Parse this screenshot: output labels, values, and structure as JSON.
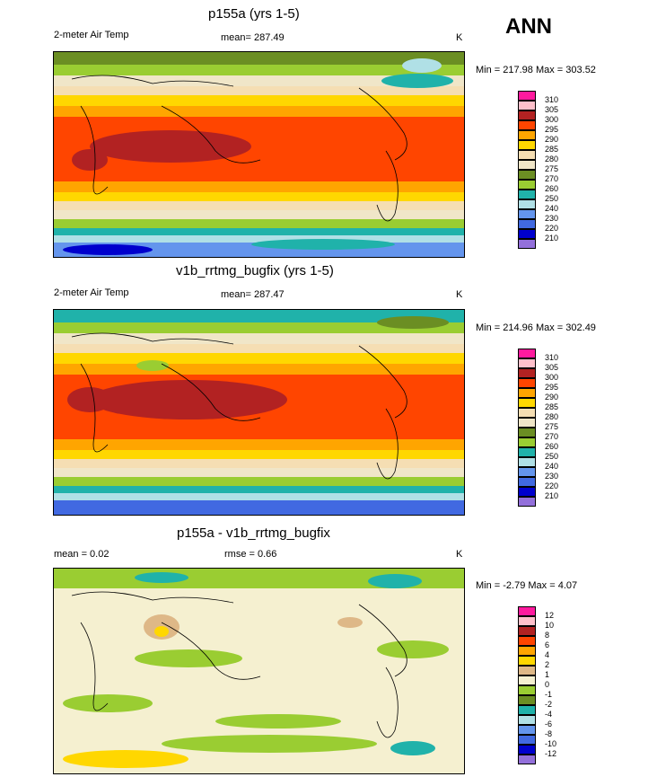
{
  "season": "ANN",
  "chart_data": [
    {
      "type": "heatmap",
      "title": "p155a (yrs 1-5)",
      "left_label": "2-meter Air Temp",
      "center_label": "mean= 287.49",
      "units": "K",
      "minmax": "Min = 217.98 Max = 303.52",
      "levels": [
        "310",
        "305",
        "300",
        "295",
        "290",
        "285",
        "280",
        "275",
        "270",
        "260",
        "250",
        "240",
        "230",
        "220",
        "210"
      ],
      "colors": [
        "#ff1a9e",
        "#ffc0cb",
        "#b22222",
        "#ff4500",
        "#ffa500",
        "#ffd700",
        "#f5deb3",
        "#f0e6c8",
        "#6b8e23",
        "#9acd32",
        "#20b2aa",
        "#b0e0e6",
        "#6495ed",
        "#4169e1",
        "#0000cd",
        "#9370db"
      ]
    },
    {
      "type": "heatmap",
      "title": "v1b_rrtmg_bugfix (yrs 1-5)",
      "left_label": "2-meter Air Temp",
      "center_label": "mean= 287.47",
      "units": "K",
      "minmax": "Min = 214.96 Max = 302.49",
      "levels": [
        "310",
        "305",
        "300",
        "295",
        "290",
        "285",
        "280",
        "275",
        "270",
        "260",
        "250",
        "240",
        "230",
        "220",
        "210"
      ],
      "colors": [
        "#ff1a9e",
        "#ffc0cb",
        "#b22222",
        "#ff4500",
        "#ffa500",
        "#ffd700",
        "#f5deb3",
        "#f0e6c8",
        "#6b8e23",
        "#9acd32",
        "#20b2aa",
        "#b0e0e6",
        "#6495ed",
        "#4169e1",
        "#0000cd",
        "#9370db"
      ]
    },
    {
      "type": "heatmap",
      "title": "p155a - v1b_rrtmg_bugfix",
      "left_label": "mean =   0.02",
      "center_label": "rmse =   0.66",
      "units": "K",
      "minmax": "Min =  -2.79 Max =   4.07",
      "levels": [
        "12",
        "10",
        "8",
        "6",
        "4",
        "2",
        "1",
        "0",
        "-1",
        "-2",
        "-4",
        "-6",
        "-8",
        "-10",
        "-12"
      ],
      "colors": [
        "#ff1a9e",
        "#ffc0cb",
        "#b22222",
        "#ff4500",
        "#ffa500",
        "#ffd700",
        "#deb887",
        "#f5f0d0",
        "#9acd32",
        "#6b8e23",
        "#20b2aa",
        "#b0e0e6",
        "#6495ed",
        "#4169e1",
        "#0000cd",
        "#9370db"
      ]
    }
  ]
}
